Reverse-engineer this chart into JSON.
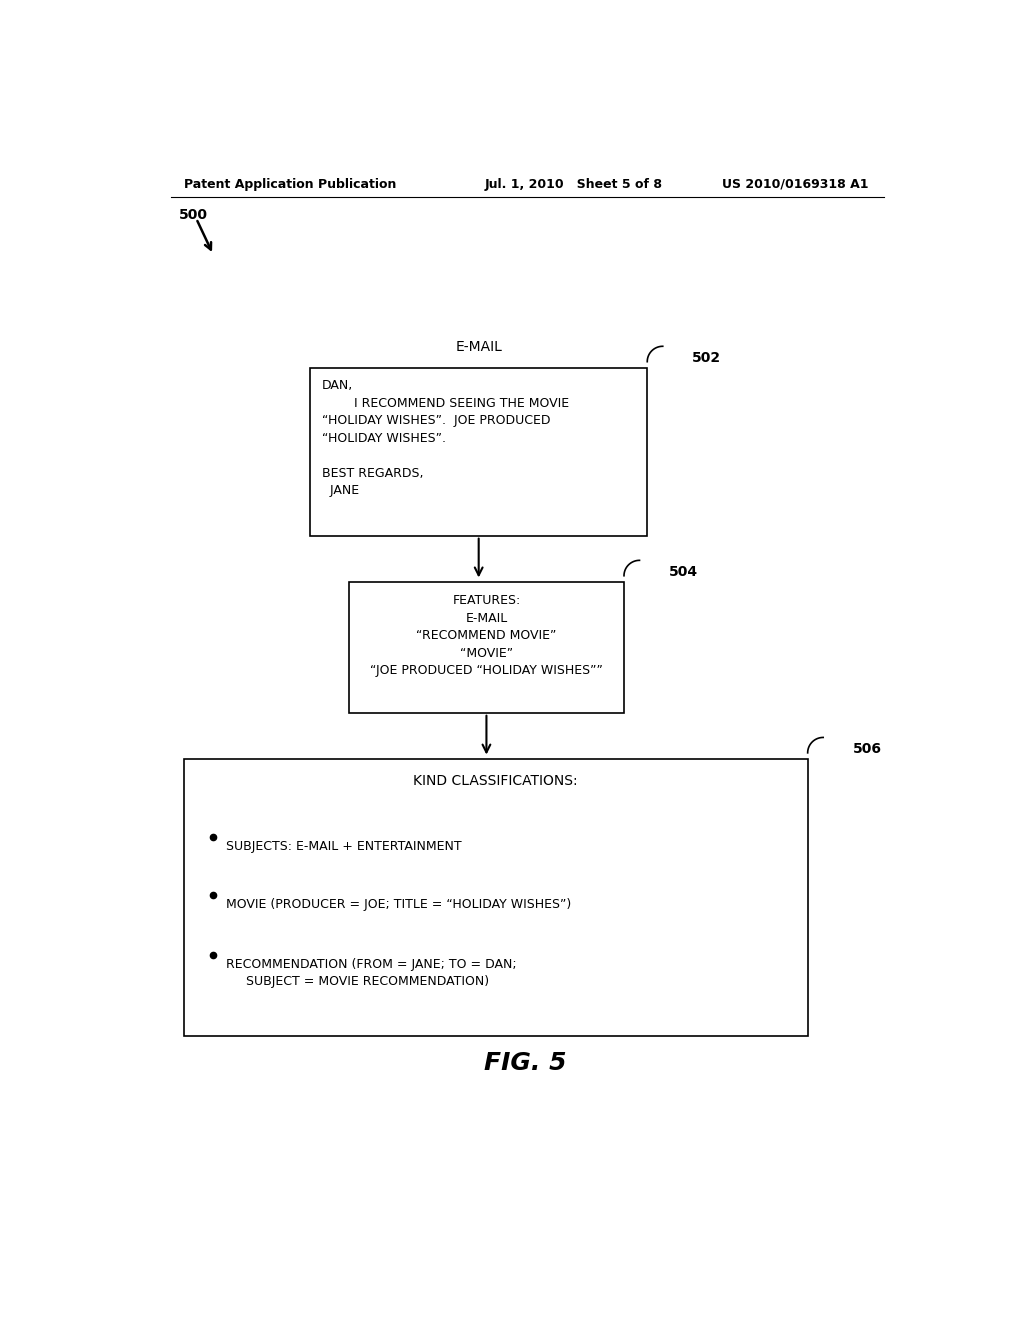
{
  "bg_color": "#ffffff",
  "header_left": "Patent Application Publication",
  "header_mid": "Jul. 1, 2010   Sheet 5 of 8",
  "header_right": "US 2010/0169318 A1",
  "fig_label": "FIG. 5",
  "arrow500_label": "500",
  "box502_label": "502",
  "box502_title": "E-MAIL",
  "box502_lines": [
    "DAN,",
    "        I RECOMMEND SEEING THE MOVIE",
    "“HOLIDAY WISHES”.  JOE PRODUCED",
    "“HOLIDAY WISHES”.",
    "",
    "BEST REGARDS,",
    "  JANE"
  ],
  "box504_label": "504",
  "box504_lines": [
    "FEATURES:",
    "E-MAIL",
    "“RECOMMEND MOVIE”",
    "“MOVIE”",
    "“JOE PRODUCED “HOLIDAY WISHES””"
  ],
  "box506_label": "506",
  "box506_title": "KIND CLASSIFICATIONS:",
  "box506_bullets": [
    "SUBJECTS: E-MAIL + ENTERTAINMENT",
    "MOVIE (PRODUCER = JOE; TITLE = “HOLIDAY WISHES”)",
    "RECOMMENDATION (FROM = JANE; TO = DAN;\n     SUBJECT = MOVIE RECOMMENDATION)"
  ]
}
